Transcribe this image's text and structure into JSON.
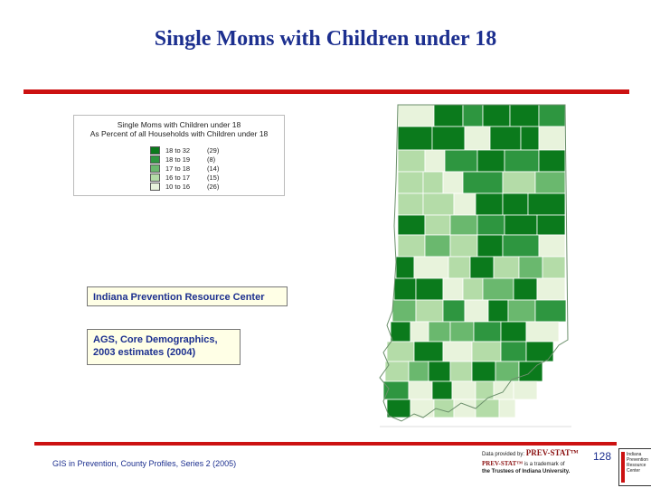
{
  "page": {
    "title": "Single Moms with Children under 18",
    "footer_text": "GIS in Prevention, County Profiles, Series 2 (2005)",
    "slide_number": "128"
  },
  "legend": {
    "title_line1": "Single Moms with Children under 18",
    "title_line2": "As Percent of all Households with Children under 18",
    "items": [
      {
        "range": "18 to 32",
        "count": "(29)",
        "color": "#0b7a1c"
      },
      {
        "range": "18 to 19",
        "count": "(8)",
        "color": "#2e9640"
      },
      {
        "range": "17 to 18",
        "count": "(14)",
        "color": "#6ab86e"
      },
      {
        "range": "16 to 17",
        "count": "(15)",
        "color": "#b4dca8"
      },
      {
        "range": "10 to 16",
        "count": "(26)",
        "color": "#e8f3dc"
      }
    ]
  },
  "boxes": {
    "organization": "Indiana Prevention Resource Center",
    "source_line1": "AGS, Core Demographics,",
    "source_line2": "2003 estimates (2004)"
  },
  "credit": {
    "data_provided_by": "Data provided by:",
    "brand": "PREV-STAT™",
    "brand2": "PREV-STAT™",
    "trademark_of": "is a trademark of",
    "trustees": "the Trustees of Indiana University.",
    "logo_line1": "Indiana",
    "logo_line2": "Prevention",
    "logo_line3": "Resource",
    "logo_line4": "Center"
  },
  "map": {
    "region": "Indiana counties",
    "palette": [
      "#0b7a1c",
      "#2e9640",
      "#6ab86e",
      "#b4dca8",
      "#e8f3dc"
    ]
  }
}
